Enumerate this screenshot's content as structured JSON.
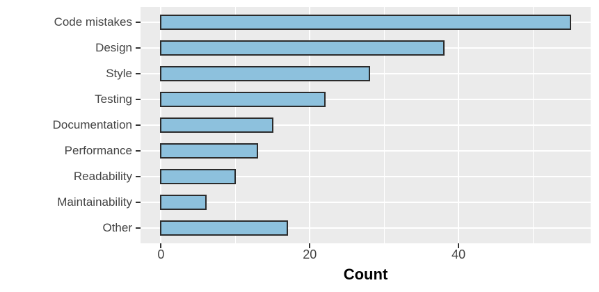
{
  "chart_data": {
    "type": "bar",
    "orientation": "horizontal",
    "categories": [
      "Code mistakes",
      "Design",
      "Style",
      "Testing",
      "Documentation",
      "Performance",
      "Readability",
      "Maintainability",
      "Other"
    ],
    "values": [
      55,
      38,
      28,
      22,
      15,
      13,
      10,
      6,
      17
    ],
    "xlabel": "Count",
    "ylabel": "",
    "xlim": [
      -2.75,
      57.75
    ],
    "x_major_ticks": [
      0,
      20,
      40
    ],
    "x_tick_labels": [
      "0",
      "20",
      "40"
    ],
    "x_minor_gridlines": [
      10,
      30,
      50
    ],
    "grid": true,
    "legend": false,
    "theme": "ggplot-grey",
    "colors": {
      "bar_fill": "#8DC1DD",
      "bar_stroke": "#2B2B2B",
      "panel_bg": "#EBEBEB",
      "gridline": "#FFFFFF",
      "axis_text": "#444444",
      "axis_title": "#000000",
      "tick_mark": "#333333",
      "page_bg": "#FFFFFF"
    }
  }
}
